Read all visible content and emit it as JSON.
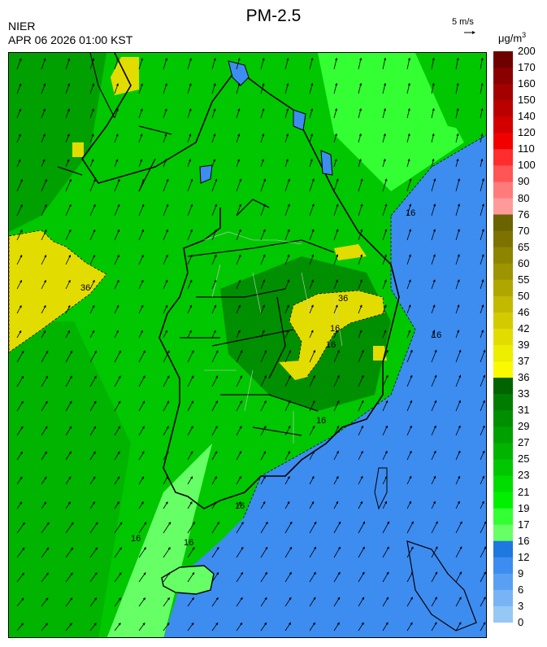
{
  "header": {
    "title": "PM-2.5",
    "org": "NIER",
    "timestamp": "APR 06 2026 01:00 KST",
    "vector_scale_label": "5 m/s",
    "unit_base": "μg/m",
    "unit_exp": "3"
  },
  "colorbar": {
    "labels": [
      "200",
      "170",
      "160",
      "150",
      "140",
      "120",
      "110",
      "100",
      "90",
      "80",
      "76",
      "70",
      "65",
      "60",
      "55",
      "50",
      "46",
      "42",
      "39",
      "37",
      "36",
      "33",
      "31",
      "29",
      "27",
      "25",
      "23",
      "21",
      "19",
      "17",
      "16",
      "12",
      "9",
      "6",
      "3",
      "0"
    ],
    "colors": [
      "#6e0000",
      "#8a0000",
      "#a30000",
      "#bb0000",
      "#d40000",
      "#f20000",
      "#ff2d2d",
      "#ff5555",
      "#ff7a7a",
      "#ff9a9a",
      "#6b6200",
      "#7d7200",
      "#8d8400",
      "#9c9400",
      "#afa600",
      "#c2b900",
      "#d3cb00",
      "#e3dc00",
      "#eded00",
      "#f9f900",
      "#006400",
      "#007d00",
      "#008f00",
      "#00a000",
      "#00b400",
      "#00c700",
      "#00dc00",
      "#00f000",
      "#33ff33",
      "#66ff66",
      "#1f77e0",
      "#3d8cf0",
      "#5aa0f2",
      "#78b4f4",
      "#96c8f6"
    ]
  },
  "map": {
    "contour_labels": [
      "36",
      "36",
      "16",
      "16",
      "16",
      "16",
      "16",
      "16",
      "16",
      "16"
    ],
    "colors": {
      "sea": "#3d8cf0",
      "low_pm": "#00c700",
      "mid_pm": "#00a000",
      "high_pm": "#008f00",
      "yellow": "#e3dc00",
      "light": "#66ff66"
    }
  }
}
